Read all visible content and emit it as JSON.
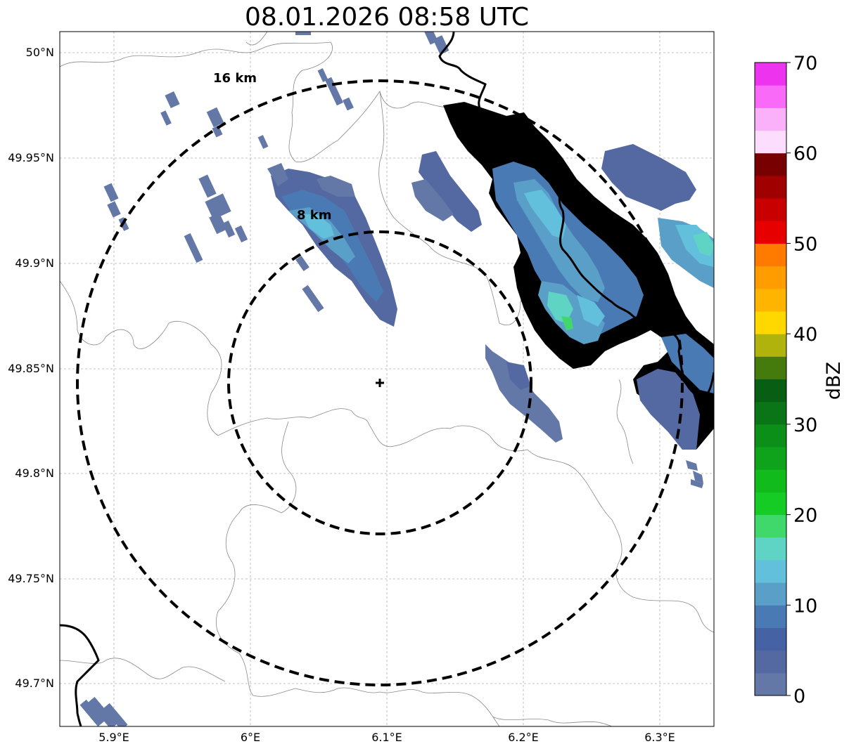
{
  "title": "08.01.2026 08:58 UTC",
  "map": {
    "lon_range": [
      5.86,
      6.34
    ],
    "lat_range": [
      49.68,
      50.01
    ],
    "lon_ticks": [
      {
        "value": 5.9,
        "label": "5.9°E"
      },
      {
        "value": 6.0,
        "label": "6°E"
      },
      {
        "value": 6.1,
        "label": "6.1°E"
      },
      {
        "value": 6.2,
        "label": "6.2°E"
      },
      {
        "value": 6.3,
        "label": "6.3°E"
      }
    ],
    "lat_ticks": [
      {
        "value": 50.0,
        "label": "50°N"
      },
      {
        "value": 49.95,
        "label": "49.95°N"
      },
      {
        "value": 49.9,
        "label": "49.9°N"
      },
      {
        "value": 49.85,
        "label": "49.85°N"
      },
      {
        "value": 49.8,
        "label": "49.8°N"
      },
      {
        "value": 49.75,
        "label": "49.75°N"
      },
      {
        "value": 49.7,
        "label": "49.7°N"
      }
    ],
    "radar_center": {
      "lon": 6.095,
      "lat": 49.843
    },
    "range_rings": [
      {
        "radius_km": 8,
        "label": "8 km"
      },
      {
        "radius_km": 16,
        "label": "16 km"
      }
    ]
  },
  "colorbar": {
    "label": "dBZ",
    "min": 0,
    "max": 70,
    "ticks": [
      0,
      10,
      20,
      30,
      40,
      50,
      60,
      70
    ],
    "colors": [
      "#6478a8",
      "#5469a2",
      "#4562a5",
      "#4a7ab3",
      "#5a9fc8",
      "#63c0dc",
      "#5fd4c4",
      "#40d86b",
      "#14cc23",
      "#10bb1b",
      "#0ea31a",
      "#0c8f19",
      "#0a7517",
      "#085e12",
      "#457a0c",
      "#b0b30b",
      "#ffd800",
      "#ffb400",
      "#ff9c00",
      "#ff7b00",
      "#e60000",
      "#c90000",
      "#a10000",
      "#780000",
      "#fcddfd",
      "#fbb0fa",
      "#f96af9",
      "#ee33ee"
    ]
  }
}
